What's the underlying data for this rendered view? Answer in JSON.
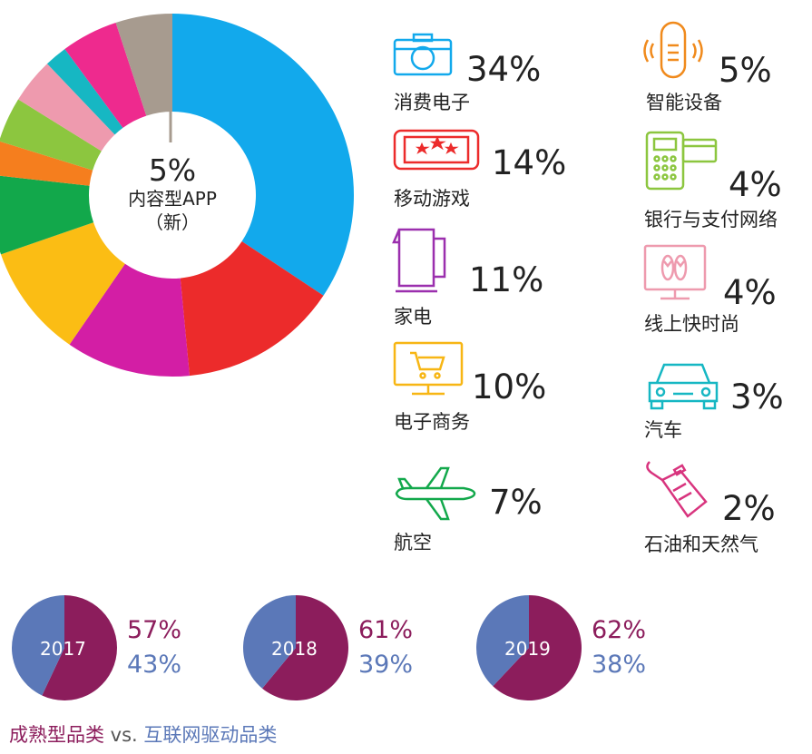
{
  "chart_data": [
    {
      "type": "pie",
      "donut": true,
      "center_label": {
        "value": "5%",
        "line1": "内容型APP",
        "line2": "（新）"
      },
      "slices": [
        {
          "name": "消费电子",
          "value": 34,
          "color": "#12a9ec"
        },
        {
          "name": "移动游戏",
          "value": 14,
          "color": "#ec2b2b"
        },
        {
          "name": "家电",
          "value": 11,
          "color": "#d31ea5"
        },
        {
          "name": "电子商务",
          "value": 10,
          "color": "#fbbd14"
        },
        {
          "name": "航空",
          "value": 7,
          "color": "#12a84b"
        },
        {
          "name": "汽车",
          "value": 3,
          "color": "#f57e1e"
        },
        {
          "name": "银行与支付网络",
          "value": 4,
          "color": "#8cc63f"
        },
        {
          "name": "线上快时尚",
          "value": 4,
          "color": "#ee9aae"
        },
        {
          "name": "石油和天然气",
          "value": 2,
          "color": "#16b7c3"
        },
        {
          "name": "智能设备",
          "value": 5,
          "color": "#ee2a8e"
        },
        {
          "name": "内容型APP",
          "value": 5,
          "color": "#a79b8f"
        }
      ]
    },
    {
      "type": "pie",
      "year": "2017",
      "values": [
        57,
        43
      ],
      "labels": [
        "57%",
        "43%"
      ],
      "colors": [
        "#8c1d5c",
        "#5b78b8"
      ]
    },
    {
      "type": "pie",
      "year": "2018",
      "values": [
        61,
        39
      ],
      "labels": [
        "61%",
        "39%"
      ],
      "colors": [
        "#8c1d5c",
        "#5b78b8"
      ]
    },
    {
      "type": "pie",
      "year": "2019",
      "values": [
        62,
        38
      ],
      "labels": [
        "62%",
        "38%"
      ],
      "colors": [
        "#8c1d5c",
        "#5b78b8"
      ]
    }
  ],
  "categories": [
    {
      "key": "consumer",
      "pct": "34%",
      "name": "消费电子",
      "icon": "camera-icon",
      "color": "#12a9ec"
    },
    {
      "key": "smart",
      "pct": "5%",
      "name": "智能设备",
      "icon": "smart-speaker-icon",
      "color": "#f08a1c"
    },
    {
      "key": "game",
      "pct": "14%",
      "name": "移动游戏",
      "icon": "mobile-game-icon",
      "color": "#ec2b2b"
    },
    {
      "key": "bank",
      "pct": "4%",
      "name": "银行与支付网络",
      "icon": "payment-terminal-icon",
      "color": "#8cc63f"
    },
    {
      "key": "appliance",
      "pct": "11%",
      "name": "家电",
      "icon": "kettle-icon",
      "color": "#9b2fae"
    },
    {
      "key": "fashion",
      "pct": "4%",
      "name": "线上快时尚",
      "icon": "monitor-flipflops-icon",
      "color": "#ee9aae"
    },
    {
      "key": "ecommerce",
      "pct": "10%",
      "name": "电子商务",
      "icon": "monitor-cart-icon",
      "color": "#f7b614"
    },
    {
      "key": "car",
      "pct": "3%",
      "name": "汽车",
      "icon": "car-icon",
      "color": "#16b7c3"
    },
    {
      "key": "airline",
      "pct": "7%",
      "name": "航空",
      "icon": "airplane-icon",
      "color": "#12a84b"
    },
    {
      "key": "oil",
      "pct": "2%",
      "name": "石油和天然气",
      "icon": "oil-can-icon",
      "color": "#d8347e"
    }
  ],
  "caption": {
    "mature": "成熟型品类",
    "vs": " vs. ",
    "internet": "互联网驱动品类",
    "mature_color": "#8c1d5c",
    "internet_color": "#5b78b8"
  }
}
